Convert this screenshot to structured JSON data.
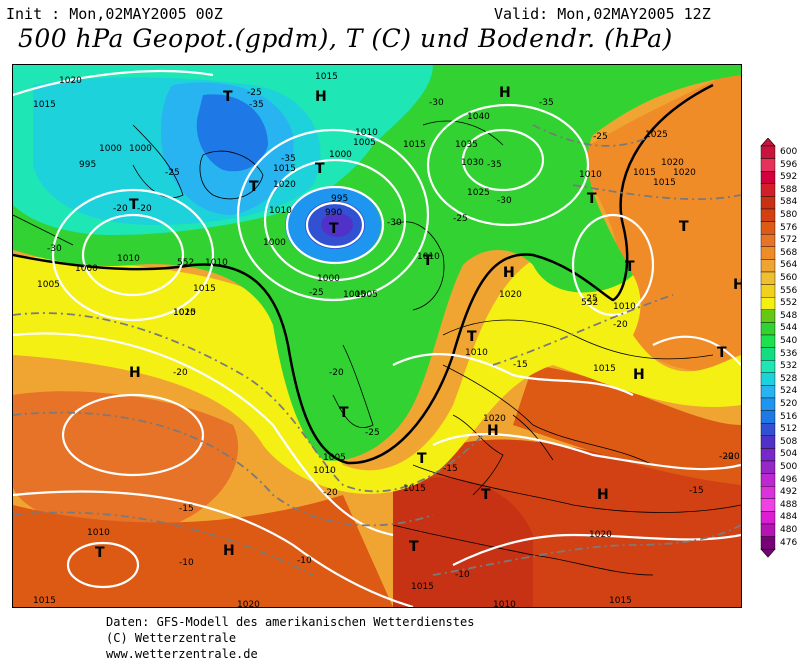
{
  "header": {
    "init": "Init : Mon,02MAY2005 00Z",
    "valid": "Valid: Mon,02MAY2005 12Z",
    "title": "500 hPa Geopot.(gpdm), T (C) und Bodendr. (hPa)"
  },
  "credits": {
    "line1": "Daten: GFS-Modell des amerikanischen Wetterdienstes",
    "line2": "(C) Wetterzentrale",
    "line3": "www.wetterzentrale.de"
  },
  "legend": {
    "levels": [
      "600",
      "596",
      "592",
      "588",
      "584",
      "580",
      "576",
      "572",
      "568",
      "564",
      "560",
      "556",
      "552",
      "548",
      "544",
      "540",
      "536",
      "532",
      "528",
      "524",
      "520",
      "516",
      "512",
      "508",
      "504",
      "500",
      "496",
      "492",
      "488",
      "484",
      "480",
      "476"
    ],
    "colors": [
      "#c8143c",
      "#e6325a",
      "#d2003c",
      "#d21e28",
      "#c83214",
      "#d24114",
      "#dc5a14",
      "#e67328",
      "#f08c28",
      "#f0a532",
      "#f0be32",
      "#f0d21e",
      "#f5f014",
      "#64c814",
      "#32d232",
      "#1ee150",
      "#14dc82",
      "#1ee6b4",
      "#1ed2dc",
      "#28b4f0",
      "#1e96f0",
      "#1e78e6",
      "#3250d2",
      "#5032c8",
      "#7828c8",
      "#9628c8",
      "#be28d2",
      "#dc32dc",
      "#f041e6",
      "#dc1ed2",
      "#b414b4",
      "#780078"
    ]
  },
  "pressure_labels": [
    "1020",
    "1015",
    "1015",
    "995",
    "1000",
    "1015",
    "1020",
    "1010",
    "1015",
    "1010",
    "1005",
    "1000",
    "995",
    "990",
    "1000",
    "1040",
    "1035",
    "1030",
    "1025",
    "1025",
    "1010",
    "1015",
    "1020",
    "1000",
    "1005",
    "1015",
    "1010",
    "1005",
    "1000",
    "1005",
    "1010",
    "1010",
    "1010",
    "1020",
    "1015",
    "1015",
    "1020",
    "1010",
    "1020",
    "1015",
    "1015",
    "1010",
    "1015",
    "1020",
    "1010",
    "1015",
    "1020",
    "1010",
    "1015",
    "1020",
    "1000",
    "1005"
  ],
  "temperature_labels": [
    "-35",
    "-35",
    "-30",
    "-35",
    "-25",
    "-20",
    "-30",
    "-30",
    "-25",
    "-30",
    "-25",
    "-25",
    "-35",
    "-25",
    "-20",
    "-20",
    "-25",
    "-20",
    "-15",
    "-15",
    "-20",
    "-15",
    "-20",
    "-15",
    "-10",
    "-10",
    "-10",
    "-25",
    "-20",
    "-20"
  ],
  "geopot_labels": [
    "552",
    "552"
  ],
  "pressure_centers": [
    {
      "type": "H",
      "label": "H"
    },
    {
      "type": "T",
      "label": "T"
    },
    {
      "type": "H",
      "label": "H"
    },
    {
      "type": "T",
      "label": "T"
    },
    {
      "type": "T",
      "label": "T"
    },
    {
      "type": "T",
      "label": "T"
    },
    {
      "type": "T",
      "label": "T"
    },
    {
      "type": "T",
      "label": "T"
    },
    {
      "type": "H",
      "label": "H"
    },
    {
      "type": "T",
      "label": "T"
    },
    {
      "type": "T",
      "label": "T"
    },
    {
      "type": "H",
      "label": "H"
    },
    {
      "type": "T",
      "label": "T"
    },
    {
      "type": "T",
      "label": "T"
    },
    {
      "type": "T",
      "label": "T"
    },
    {
      "type": "H",
      "label": "H"
    },
    {
      "type": "T",
      "label": "T"
    },
    {
      "type": "H",
      "label": "H"
    },
    {
      "type": "H",
      "label": "H"
    },
    {
      "type": "T",
      "label": "T"
    },
    {
      "type": "T",
      "label": "T"
    },
    {
      "type": "T",
      "label": "T"
    },
    {
      "type": "T",
      "label": "T"
    },
    {
      "type": "T",
      "label": "T"
    },
    {
      "type": "H",
      "label": "H"
    },
    {
      "type": "H",
      "label": "H"
    },
    {
      "type": "T",
      "label": "T"
    },
    {
      "type": "H",
      "label": "H"
    },
    {
      "type": "T",
      "label": "T"
    }
  ]
}
